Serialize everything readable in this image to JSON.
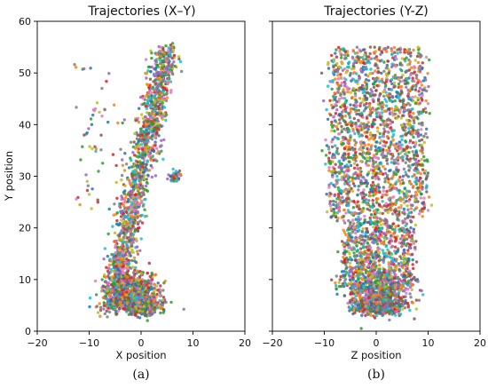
{
  "chart_data": [
    {
      "type": "scatter",
      "title": "Trajectories (X–Y)",
      "xlabel": "X position",
      "ylabel": "Y position",
      "xlim": [
        -20,
        20
      ],
      "ylim": [
        0,
        60
      ],
      "xticks": [
        "−20",
        "−10",
        "0",
        "10",
        "20"
      ],
      "yticks": [
        "0",
        "10",
        "20",
        "30",
        "40",
        "50",
        "60"
      ],
      "panel_label": "(a)",
      "grid": false,
      "point_clouds": [
        {
          "kind": "diagonal-band",
          "from": [
            -6.0,
            4.0
          ],
          "to": [
            5.0,
            55.0
          ],
          "half_width": 1.8
        },
        {
          "kind": "blob",
          "center": [
            -1.5,
            8.0
          ],
          "spread": [
            4.5,
            3.5
          ]
        },
        {
          "kind": "blob",
          "center": [
            0.0,
            5.0
          ],
          "spread": [
            3.5,
            1.5
          ]
        },
        {
          "kind": "sparse-left",
          "x_range": [
            -13.0,
            -3.0
          ],
          "y_range": [
            22.0,
            52.0
          ]
        },
        {
          "kind": "side-cluster",
          "center": [
            6.5,
            30.0
          ],
          "spread": [
            1.2,
            1.5
          ]
        }
      ]
    },
    {
      "type": "scatter",
      "title": "Trajectories (Y-Z)",
      "xlabel": "Z position",
      "ylabel": "",
      "xlim": [
        -20,
        20
      ],
      "ylim": [
        0,
        60
      ],
      "xticks": [
        "−20",
        "−10",
        "0",
        "10",
        "20"
      ],
      "yticks": [],
      "panel_label": "(b)",
      "grid": false,
      "point_clouds": [
        {
          "kind": "column",
          "x_range": [
            -9.0,
            9.5
          ],
          "y_range": [
            8.0,
            55.0
          ]
        },
        {
          "kind": "blob",
          "center": [
            0.5,
            8.0
          ],
          "spread": [
            5.5,
            4.0
          ]
        },
        {
          "kind": "blob",
          "center": [
            0.5,
            5.0
          ],
          "spread": [
            4.0,
            1.5
          ]
        }
      ]
    }
  ],
  "palette": [
    "#1f77b4",
    "#ff7f0e",
    "#2ca02c",
    "#d62728",
    "#9467bd",
    "#8c564b",
    "#e377c2",
    "#7f7f7f",
    "#bcbd22",
    "#17becf"
  ]
}
